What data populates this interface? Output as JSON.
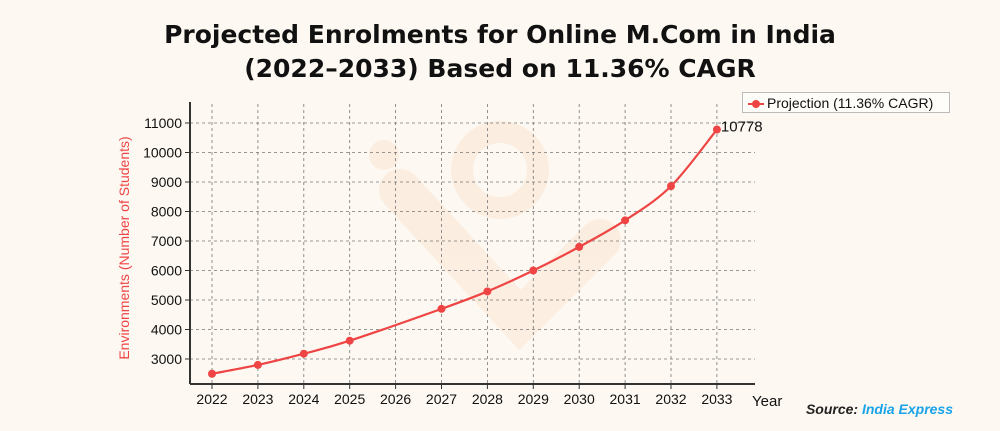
{
  "title_line1": "Projected Enrolments for Online M.Com in India",
  "title_line2": "(2022–2033) Based on 11.36% CAGR",
  "source_label": "Source:",
  "source_brand": "India Express",
  "colors": {
    "series": "#ee4444",
    "ylabel": "#ee4444",
    "brand": "#1aa3e8",
    "background": "#fdf9f2"
  },
  "chart_data": {
    "type": "line",
    "title": "Projected Enrolments for Online M.Com in India (2022–2033) Based on 11.36% CAGR",
    "xlabel": "Year",
    "ylabel": "Environments (Number of Students)",
    "x_ticks": [
      "2022",
      "2023",
      "2024",
      "2025",
      "2026",
      "2027",
      "2028",
      "2029",
      "2030",
      "2031",
      "2032",
      "2033"
    ],
    "y_ticks": [
      "3000",
      "4000",
      "5000",
      "6000",
      "7000",
      "8000",
      "9000",
      "10000",
      "11000"
    ],
    "ylim": [
      2200,
      11600
    ],
    "grid": true,
    "legend_position": "top-right",
    "series": [
      {
        "name": "Projection (11.36% CAGR)",
        "x": [
          2022,
          2023,
          2024,
          2025,
          2027,
          2028,
          2029,
          2030,
          2031,
          2032,
          2033
        ],
        "y": [
          2500,
          2800,
          3180,
          3620,
          4700,
          5290,
          6000,
          6800,
          7700,
          8860,
          10778
        ]
      }
    ],
    "annotations": [
      {
        "x": 2033,
        "y": 10778,
        "text": "10778"
      }
    ]
  }
}
